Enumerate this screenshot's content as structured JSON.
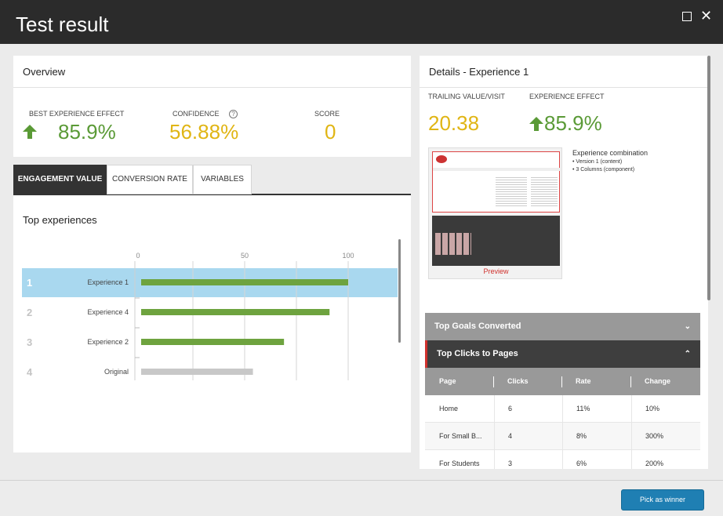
{
  "window": {
    "title": "Test result"
  },
  "overview": {
    "header": "Overview",
    "best_effect_label": "BEST EXPERIENCE EFFECT",
    "best_effect_value": "85.9%",
    "confidence_label": "CONFIDENCE",
    "confidence_value": "56.88%",
    "score_label": "SCORE",
    "score_value": "0"
  },
  "tabs": [
    {
      "label": "ENGAGEMENT VALUE",
      "active": true
    },
    {
      "label": "CONVERSION RATE",
      "active": false
    },
    {
      "label": "VARIABLES",
      "active": false
    }
  ],
  "top_experiences": {
    "title": "Top experiences",
    "rows": [
      {
        "rank": "1",
        "name": "Experience 1",
        "selected": true
      },
      {
        "rank": "2",
        "name": "Experience 4",
        "selected": false
      },
      {
        "rank": "3",
        "name": "Experience 2",
        "selected": false
      },
      {
        "rank": "4",
        "name": "Original",
        "selected": false
      }
    ]
  },
  "chart_data": {
    "type": "bar",
    "orientation": "horizontal",
    "categories": [
      "Experience 1",
      "Experience 4",
      "Experience 2",
      "Original"
    ],
    "values": [
      100,
      91,
      69,
      54
    ],
    "x_ticks": [
      0,
      50,
      100
    ],
    "xlim": [
      0,
      125
    ],
    "colors": [
      "#6ea33f",
      "#6ea33f",
      "#6ea33f",
      "#c8c8c8"
    ]
  },
  "details": {
    "header": "Details - Experience 1",
    "trailing_label": "TRAILING VALUE/VISIT",
    "trailing_value": "20.38",
    "effect_label": "EXPERIENCE EFFECT",
    "effect_value": "85.9%",
    "combination_title": "Experience combination",
    "combination_items": [
      "Version 1 (content)",
      "3 Columns (component)"
    ],
    "preview_label": "Preview",
    "top_goals": "Top Goals Converted",
    "top_clicks": "Top Clicks to Pages",
    "table_headers": [
      "Page",
      "Clicks",
      "Rate",
      "Change"
    ],
    "table_rows": [
      [
        "Home",
        "6",
        "11%",
        "10%"
      ],
      [
        "For Small B...",
        "4",
        "8%",
        "300%"
      ],
      [
        "For Students",
        "3",
        "6%",
        "200%"
      ]
    ]
  },
  "footer": {
    "pick_winner": "Pick as winner"
  },
  "colors": {
    "green": "#5a9a36",
    "gold": "#e0b514",
    "selected_row": "#a9d8ef",
    "accent_red": "#d0312d",
    "button": "#1f7fb3"
  }
}
